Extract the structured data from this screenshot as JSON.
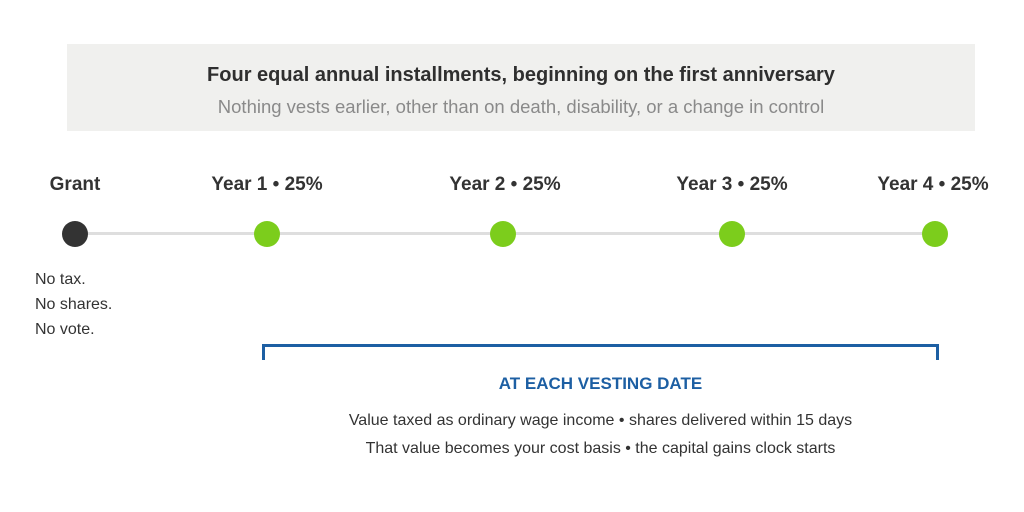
{
  "header": {
    "title": "Four equal annual installments, beginning on the first anniversary",
    "subtitle": "Nothing vests earlier, other than on death, disability, or a change in control"
  },
  "timeline": {
    "points": [
      {
        "label": "Grant",
        "kind": "grant"
      },
      {
        "label": "Year 1 • 25%",
        "kind": "vest"
      },
      {
        "label": "Year 2 • 25%",
        "kind": "vest"
      },
      {
        "label": "Year 3 • 25%",
        "kind": "vest"
      },
      {
        "label": "Year 4 • 25%",
        "kind": "vest"
      }
    ],
    "colors": {
      "grant": "#333333",
      "vest": "#7ccd1c",
      "line": "#dedede",
      "bracket": "#1d5fa3"
    }
  },
  "grant_notes": [
    "No tax.",
    "No shares.",
    "No vote."
  ],
  "vesting": {
    "heading": "AT EACH VESTING DATE",
    "lines": [
      "Value taxed as ordinary wage income • shares delivered within 15 days",
      "That value becomes your cost basis • the capital gains clock starts"
    ]
  }
}
